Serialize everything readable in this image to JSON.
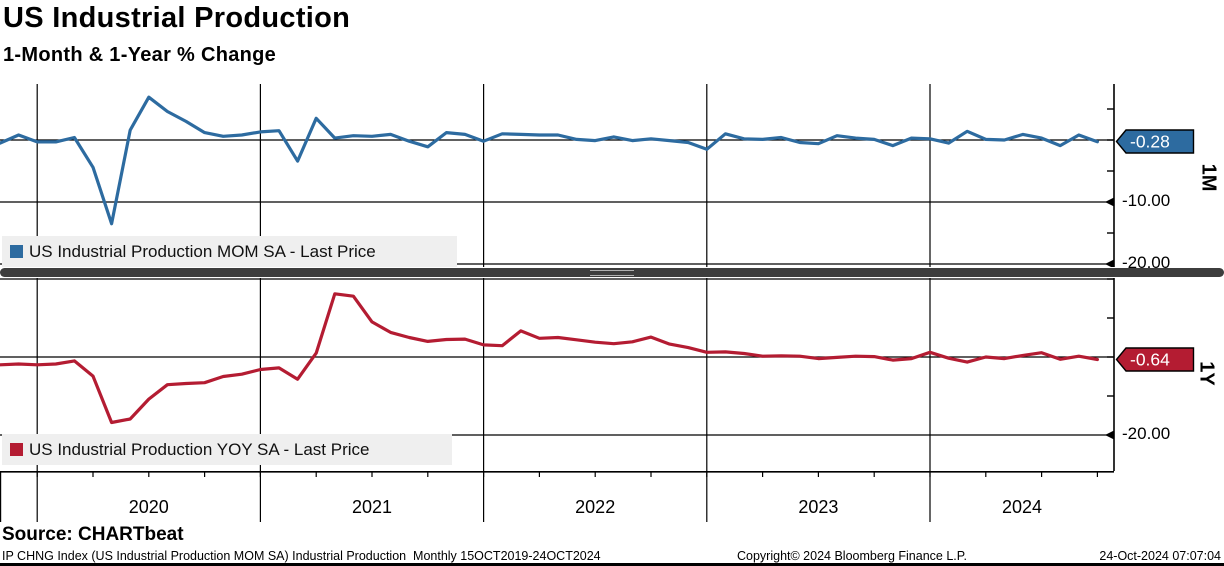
{
  "header": {
    "title": "US Industrial Production",
    "subtitle": "1-Month & 1-Year % Change"
  },
  "chart_data": {
    "type": "line",
    "frequency": "Monthly",
    "x_range_label": "15OCT2019-24OCT2024",
    "years": [
      "2020",
      "2021",
      "2022",
      "2023",
      "2024"
    ],
    "x_months": [
      "Oct-2019",
      "Nov-2019",
      "Dec-2019",
      "Jan-2020",
      "Feb-2020",
      "Mar-2020",
      "Apr-2020",
      "May-2020",
      "Jun-2020",
      "Jul-2020",
      "Aug-2020",
      "Sep-2020",
      "Oct-2020",
      "Nov-2020",
      "Dec-2020",
      "Jan-2021",
      "Feb-2021",
      "Mar-2021",
      "Apr-2021",
      "May-2021",
      "Jun-2021",
      "Jul-2021",
      "Aug-2021",
      "Sep-2021",
      "Oct-2021",
      "Nov-2021",
      "Dec-2021",
      "Jan-2022",
      "Feb-2022",
      "Mar-2022",
      "Apr-2022",
      "May-2022",
      "Jun-2022",
      "Jul-2022",
      "Aug-2022",
      "Sep-2022",
      "Oct-2022",
      "Nov-2022",
      "Dec-2022",
      "Jan-2023",
      "Feb-2023",
      "Mar-2023",
      "Apr-2023",
      "May-2023",
      "Jun-2023",
      "Jul-2023",
      "Aug-2023",
      "Sep-2023",
      "Oct-2023",
      "Nov-2023",
      "Dec-2023",
      "Jan-2024",
      "Feb-2024",
      "Mar-2024",
      "Apr-2024",
      "May-2024",
      "Jun-2024",
      "Jul-2024",
      "Aug-2024",
      "Sep-2024"
    ],
    "panels": [
      {
        "id": "1M",
        "axis_unit": "1M",
        "legend": "US Industrial Production MOM SA - Last Price",
        "series_name": "US Industrial Production MOM SA",
        "color": "#2d6ba0",
        "last_price_label": "-0.28",
        "ylim": [
          -20.5,
          9.0
        ],
        "gridline_values": [
          0,
          -10,
          -20
        ],
        "tick_values": [
          5,
          0,
          -5,
          -10,
          -15,
          -20
        ],
        "axis_tick_labels": [
          {
            "text": "-10.00",
            "value": -10
          },
          {
            "text": "-20.00",
            "value": -20
          }
        ],
        "values": [
          -0.5,
          0.8,
          -0.3,
          -0.3,
          0.4,
          -4.4,
          -13.5,
          1.6,
          6.9,
          4.6,
          3.0,
          1.2,
          0.6,
          0.8,
          1.3,
          1.5,
          -3.4,
          3.5,
          0.3,
          0.7,
          0.6,
          0.9,
          -0.2,
          -1.1,
          1.2,
          0.9,
          -0.2,
          1.0,
          0.9,
          0.8,
          0.8,
          0.1,
          -0.1,
          0.5,
          -0.1,
          0.2,
          -0.1,
          -0.4,
          -1.5,
          1.0,
          0.2,
          0.1,
          0.4,
          -0.4,
          -0.6,
          0.7,
          0.3,
          0.1,
          -0.9,
          0.3,
          0.2,
          -0.5,
          1.4,
          0.1,
          0.0,
          0.9,
          0.3,
          -0.9,
          0.8,
          -0.28
        ]
      },
      {
        "id": "1Y",
        "axis_unit": "1Y",
        "legend": "US Industrial Production YOY SA - Last Price",
        "series_name": "US Industrial Production YOY SA",
        "color": "#b41c32",
        "last_price_label": "-0.64",
        "ylim": [
          -29.2,
          20.3
        ],
        "gridline_values": [
          20,
          0,
          -20
        ],
        "tick_values": [
          20,
          10,
          0,
          -10,
          -20
        ],
        "axis_tick_labels": [
          {
            "text": "-20.00",
            "value": -20
          }
        ],
        "values": [
          -2.0,
          -1.8,
          -2.0,
          -1.8,
          -1.0,
          -4.9,
          -16.8,
          -15.9,
          -10.8,
          -7.1,
          -6.8,
          -6.6,
          -5.0,
          -4.4,
          -3.2,
          -2.8,
          -5.7,
          1.0,
          16.2,
          15.6,
          9.0,
          6.3,
          5.0,
          4.0,
          4.5,
          4.6,
          3.1,
          2.9,
          6.7,
          4.8,
          5.0,
          4.4,
          3.8,
          3.4,
          3.9,
          5.1,
          3.3,
          2.4,
          1.2,
          1.3,
          0.9,
          0.2,
          0.3,
          0.2,
          -0.4,
          -0.1,
          0.2,
          0.1,
          -0.8,
          -0.4,
          1.2,
          -0.3,
          -1.3,
          0.0,
          -0.4,
          0.4,
          1.1,
          -0.6,
          0.2,
          -0.64
        ]
      }
    ]
  },
  "footer": {
    "source": "Source: CHARTbeat",
    "description": "IP CHNG Index (US Industrial Production MOM SA) Industrial Production  Monthly 15OCT2019-24OCT2024",
    "copyright": "Copyright© 2024 Bloomberg Finance L.P.",
    "timestamp": "24-Oct-2024 07:07:04"
  }
}
